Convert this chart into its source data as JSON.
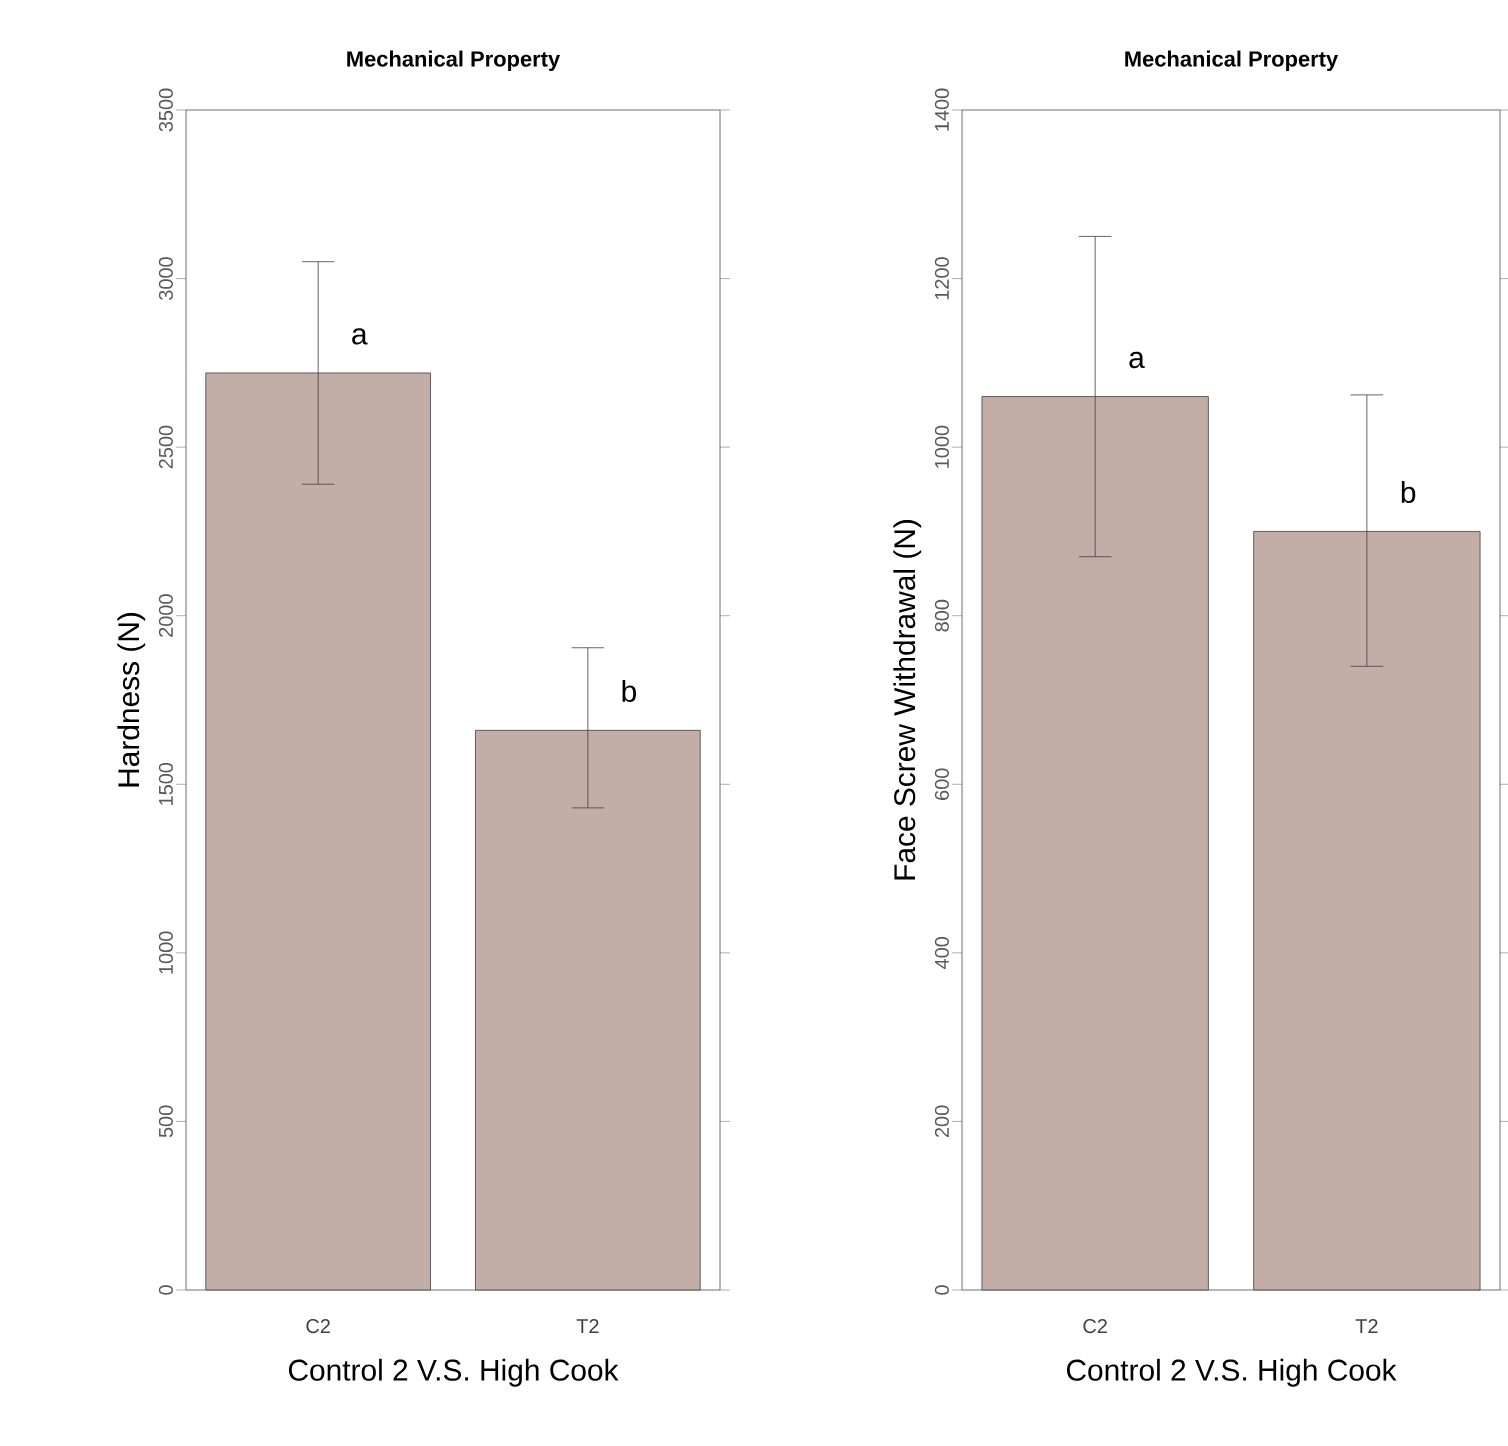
{
  "chart_data": [
    {
      "type": "bar",
      "title": "Mechanical Property",
      "xlabel": "Control 2 V.S. High Cook",
      "ylabel": "Hardness (N)",
      "categories": [
        "C2",
        "T2"
      ],
      "values": [
        2720,
        1660
      ],
      "errors": [
        [
          2390,
          3050
        ],
        [
          1430,
          1905
        ]
      ],
      "color": "#c2aea7",
      "ylim": [
        0,
        3500
      ],
      "yticks": [
        0,
        500,
        1000,
        1500,
        2000,
        2500,
        3000,
        3500
      ],
      "annotations": [
        "a",
        "b"
      ]
    },
    {
      "type": "bar",
      "title": "Mechanical Property",
      "xlabel": "Control 2 V.S. High Cook",
      "ylabel": "Face Screw Withdrawal (N)",
      "categories": [
        "C2",
        "T2"
      ],
      "values": [
        1060,
        900
      ],
      "errors": [
        [
          870,
          1250
        ],
        [
          740,
          1062
        ]
      ],
      "color": "#c2aea7",
      "ylim": [
        0,
        1400
      ],
      "yticks": [
        0,
        200,
        400,
        600,
        800,
        1000,
        1200,
        1400
      ],
      "annotations": [
        "a",
        "b"
      ]
    }
  ]
}
